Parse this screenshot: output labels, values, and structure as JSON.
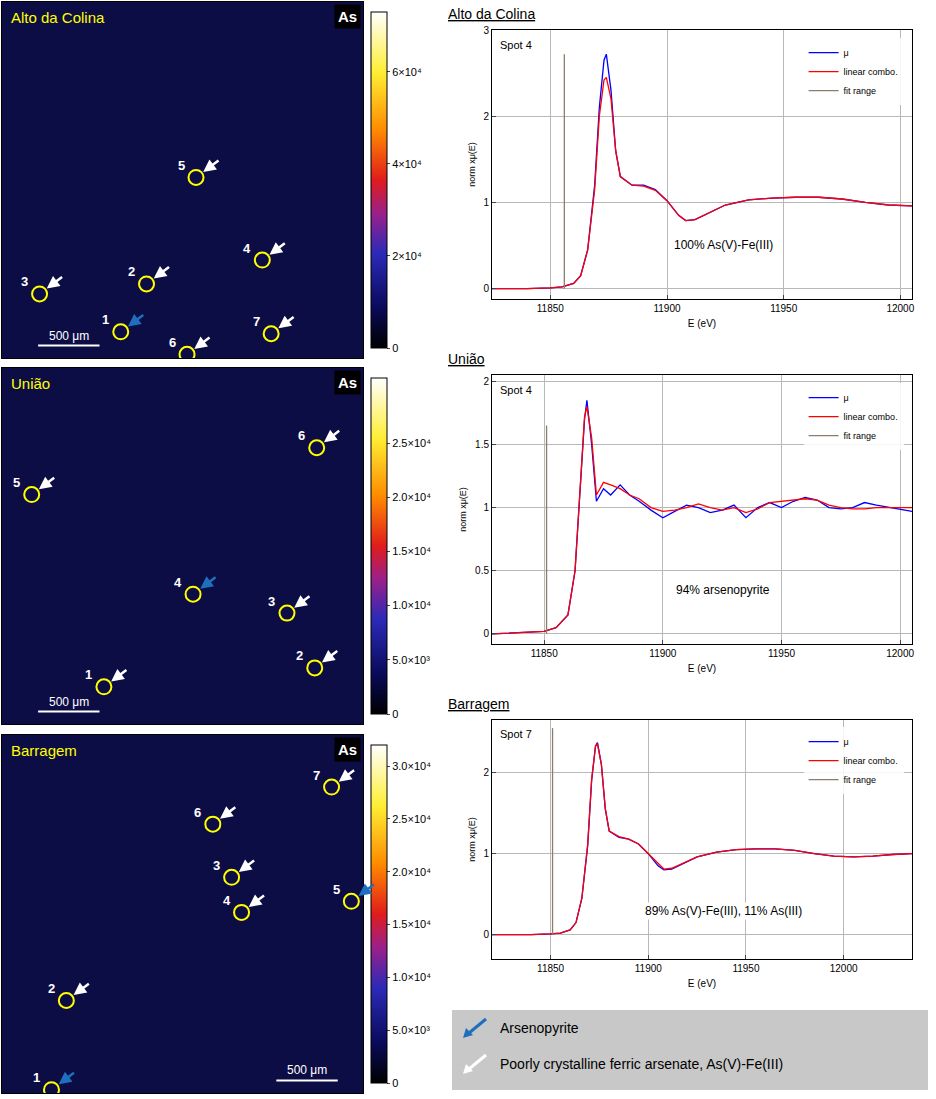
{
  "chart_data": [
    {
      "type": "map",
      "title": "Alto da Colina",
      "element": "As",
      "xlim": [
        0,
        2940
      ],
      "ylim": [
        2880,
        0
      ],
      "tick_labels": false,
      "scale_bar": {
        "length": 500,
        "label": "500 μm"
      },
      "colorbar": {
        "range": [
          0,
          73000
        ],
        "ticks": [
          0,
          {
            "value": 20000,
            "label": "2×10⁴"
          },
          {
            "value": 40000,
            "label": "4×10⁴"
          },
          {
            "value": 60000,
            "label": "6×10⁴"
          }
        ]
      },
      "spots": [
        {
          "id": 1,
          "x": 967,
          "y": 2668,
          "phase": "Arsenopyrite"
        },
        {
          "id": 2,
          "x": 1177,
          "y": 2281,
          "phase": "Poorly crystalline ferric arsenate, As(V)-Fe(III)"
        },
        {
          "id": 3,
          "x": 306,
          "y": 2362,
          "phase": "Poorly crystalline ferric arsenate, As(V)-Fe(III)"
        },
        {
          "id": 4,
          "x": 2120,
          "y": 2088,
          "phase": "Poorly crystalline ferric arsenate, As(V)-Fe(III)"
        },
        {
          "id": 5,
          "x": 1580,
          "y": 1419,
          "phase": "Poorly crystalline ferric arsenate, As(V)-Fe(III)"
        },
        {
          "id": 6,
          "x": 1507,
          "y": 2850,
          "phase": "Poorly crystalline ferric arsenate, As(V)-Fe(III)"
        },
        {
          "id": 7,
          "x": 2192,
          "y": 2684,
          "phase": "Poorly crystalline ferric arsenate, As(V)-Fe(III)"
        }
      ]
    },
    {
      "type": "map",
      "title": "União",
      "element": "As",
      "xlim": [
        0,
        2940
      ],
      "ylim": [
        2880,
        0
      ],
      "tick_labels": false,
      "scale_bar": {
        "length": 500,
        "label": "500 μm"
      },
      "colorbar": {
        "range": [
          0,
          31000
        ],
        "ticks": [
          0,
          {
            "value": 5000,
            "label": "5.0×10³"
          },
          {
            "value": 10000,
            "label": "1.0×10⁴"
          },
          {
            "value": 15000,
            "label": "1.5×10⁴"
          },
          {
            "value": 20000,
            "label": "2.0×10⁴"
          },
          {
            "value": 25000,
            "label": "2.5×10⁴"
          }
        ]
      },
      "spots": [
        {
          "id": 1,
          "x": 830,
          "y": 2579,
          "phase": "Poorly crystalline ferric arsenate, As(V)-Fe(III)"
        },
        {
          "id": 2,
          "x": 2547,
          "y": 2426,
          "phase": "Poorly crystalline ferric arsenate, As(V)-Fe(III)"
        },
        {
          "id": 3,
          "x": 2321,
          "y": 1983,
          "phase": "Poorly crystalline ferric arsenate, As(V)-Fe(III)"
        },
        {
          "id": 4,
          "x": 1556,
          "y": 1830,
          "phase": "Arsenopyrite"
        },
        {
          "id": 5,
          "x": 242,
          "y": 1024,
          "phase": "Poorly crystalline ferric arsenate, As(V)-Fe(III)"
        },
        {
          "id": 6,
          "x": 2563,
          "y": 645,
          "phase": "Poorly crystalline ferric arsenate, As(V)-Fe(III)"
        }
      ]
    },
    {
      "type": "map",
      "title": "Barragem",
      "element": "As",
      "xlim": [
        0,
        2940
      ],
      "ylim": [
        2880,
        0
      ],
      "tick_labels": false,
      "scale_bar": {
        "length": 500,
        "label": "500 μm"
      },
      "colorbar": {
        "range": [
          0,
          32000
        ],
        "ticks": [
          0,
          {
            "value": 5000,
            "label": "5.0×10³"
          },
          {
            "value": 10000,
            "label": "1.0×10⁴"
          },
          {
            "value": 15000,
            "label": "1.5×10⁴"
          },
          {
            "value": 20000,
            "label": "2.0×10⁴"
          },
          {
            "value": 25000,
            "label": "2.5×10⁴"
          },
          {
            "value": 30000,
            "label": "3.0×10⁴"
          }
        ]
      },
      "spots": [
        {
          "id": 1,
          "x": 403,
          "y": 2853,
          "phase": "Arsenopyrite"
        },
        {
          "id": 2,
          "x": 524,
          "y": 2136,
          "phase": "Poorly crystalline ferric arsenate, As(V)-Fe(III)"
        },
        {
          "id": 3,
          "x": 1870,
          "y": 1145,
          "phase": "Poorly crystalline ferric arsenate, As(V)-Fe(III)"
        },
        {
          "id": 4,
          "x": 1951,
          "y": 1427,
          "phase": "Poorly crystalline ferric arsenate, As(V)-Fe(III)"
        },
        {
          "id": 5,
          "x": 2845,
          "y": 1338,
          "phase": "Arsenopyrite"
        },
        {
          "id": 6,
          "x": 1717,
          "y": 717,
          "phase": "Poorly crystalline ferric arsenate, As(V)-Fe(III)"
        },
        {
          "id": 7,
          "x": 2684,
          "y": 419,
          "phase": "Poorly crystalline ferric arsenate, As(V)-Fe(III)"
        }
      ]
    },
    {
      "type": "line",
      "title": "Alto da Colina",
      "spot": "Spot 4",
      "annotation": "100% As(V)-Fe(III)",
      "xlabel": "E (eV)",
      "ylabel": "norm xμ(E)",
      "xlim": [
        11825,
        12005
      ],
      "xticks": [
        11850,
        11900,
        11950,
        12000
      ],
      "ylim": [
        -0.12,
        3.0
      ],
      "yticks": [
        0,
        1,
        2,
        3
      ],
      "grid": true,
      "legend": "top right",
      "series": [
        {
          "name": "μ",
          "color": "#0000ff",
          "x": [
            11825,
            11840,
            11850,
            11855,
            11860,
            11863,
            11866,
            11869,
            11871,
            11873,
            11874,
            11876,
            11878,
            11880,
            11885,
            11890,
            11895,
            11900,
            11905,
            11908,
            11912,
            11918,
            11925,
            11935,
            11945,
            11955,
            11965,
            11975,
            11985,
            11995,
            12005
          ],
          "values": [
            0,
            0,
            0.01,
            0.02,
            0.06,
            0.15,
            0.45,
            1.2,
            2.1,
            2.65,
            2.72,
            2.3,
            1.6,
            1.3,
            1.2,
            1.2,
            1.15,
            1.02,
            0.85,
            0.79,
            0.8,
            0.88,
            0.97,
            1.03,
            1.05,
            1.06,
            1.06,
            1.04,
            1.0,
            0.97,
            0.96
          ]
        },
        {
          "name": "linear combo.",
          "color": "#ff0000",
          "x": [
            11825,
            11840,
            11850,
            11855,
            11860,
            11863,
            11866,
            11869,
            11871,
            11873,
            11874,
            11876,
            11878,
            11880,
            11885,
            11890,
            11895,
            11900,
            11905,
            11908,
            11912,
            11918,
            11925,
            11935,
            11945,
            11955,
            11965,
            11975,
            11985,
            11995,
            12005
          ],
          "values": [
            0,
            0,
            0.01,
            0.02,
            0.06,
            0.15,
            0.45,
            1.15,
            2.0,
            2.42,
            2.45,
            2.2,
            1.6,
            1.3,
            1.2,
            1.19,
            1.14,
            1.02,
            0.85,
            0.79,
            0.8,
            0.88,
            0.97,
            1.03,
            1.05,
            1.06,
            1.06,
            1.04,
            1.0,
            0.97,
            0.96
          ]
        },
        {
          "name": "fit range",
          "color": "#8b7d6b",
          "x": [
            11856,
            11856
          ],
          "values": [
            0,
            2.72
          ]
        }
      ]
    },
    {
      "type": "line",
      "title": "União",
      "spot": "Spot 4",
      "annotation": "94% arsenopyrite",
      "xlabel": "E (eV)",
      "ylabel": "norm xμ(E)",
      "xlim": [
        11828,
        12005
      ],
      "xticks": [
        11850,
        11900,
        11950,
        12000
      ],
      "ylim": [
        -0.08,
        2.05
      ],
      "yticks": [
        0,
        0.5,
        1,
        1.5,
        2
      ],
      "grid": true,
      "legend": "top right",
      "series": [
        {
          "name": "μ",
          "color": "#0000ff",
          "x": [
            11828,
            11840,
            11850,
            11855,
            11860,
            11863,
            11865,
            11867,
            11868,
            11870,
            11872,
            11875,
            11878,
            11882,
            11886,
            11890,
            11895,
            11900,
            11905,
            11910,
            11915,
            11920,
            11925,
            11930,
            11935,
            11940,
            11945,
            11950,
            11955,
            11960,
            11965,
            11970,
            11975,
            11980,
            11985,
            11990,
            12005
          ],
          "values": [
            0,
            0.01,
            0.02,
            0.05,
            0.15,
            0.5,
            1.1,
            1.7,
            1.85,
            1.5,
            1.05,
            1.15,
            1.1,
            1.18,
            1.1,
            1.05,
            0.98,
            0.92,
            0.97,
            1.02,
            1.0,
            0.96,
            0.98,
            1.02,
            0.92,
            1.0,
            1.04,
            1.0,
            1.05,
            1.08,
            1.06,
            1.0,
            0.99,
            1.0,
            1.04,
            1.02,
            0.97
          ]
        },
        {
          "name": "linear combo.",
          "color": "#ff0000",
          "x": [
            11828,
            11840,
            11850,
            11855,
            11860,
            11863,
            11865,
            11867,
            11868,
            11870,
            11872,
            11875,
            11878,
            11882,
            11886,
            11890,
            11895,
            11900,
            11905,
            11910,
            11915,
            11920,
            11925,
            11930,
            11935,
            11940,
            11945,
            11950,
            11955,
            11960,
            11965,
            11970,
            11975,
            11980,
            11985,
            11990,
            12005
          ],
          "values": [
            0,
            0.01,
            0.02,
            0.05,
            0.15,
            0.5,
            1.15,
            1.72,
            1.8,
            1.55,
            1.1,
            1.2,
            1.18,
            1.15,
            1.1,
            1.07,
            1.0,
            0.97,
            0.98,
            1.0,
            1.03,
            1.0,
            0.98,
            1.0,
            0.96,
            0.99,
            1.04,
            1.05,
            1.06,
            1.07,
            1.06,
            1.02,
            1.0,
            0.99,
            0.99,
            1.0,
            1.0
          ]
        },
        {
          "name": "fit range",
          "color": "#8b7d6b",
          "x": [
            11851,
            11851
          ],
          "values": [
            0,
            1.65
          ]
        }
      ]
    },
    {
      "type": "line",
      "title": "Barragem",
      "spot": "Spot 7",
      "annotation": "89% As(V)-Fe(III), 11% As(III)",
      "xlabel": "E (eV)",
      "ylabel": "norm xμ(E)",
      "xlim": [
        11820,
        12035
      ],
      "xticks": [
        11850,
        11900,
        11950,
        12000
      ],
      "ylim": [
        -0.3,
        2.65
      ],
      "yticks": [
        0,
        1,
        2
      ],
      "grid": true,
      "legend": "top right",
      "series": [
        {
          "name": "μ",
          "color": "#0000ff",
          "x": [
            11820,
            11840,
            11850,
            11855,
            11860,
            11863,
            11866,
            11869,
            11871,
            11873,
            11874,
            11876,
            11878,
            11880,
            11885,
            11890,
            11895,
            11900,
            11905,
            11908,
            11912,
            11918,
            11925,
            11935,
            11945,
            11955,
            11965,
            11975,
            11985,
            11995,
            12005,
            12015,
            12025,
            12035
          ],
          "values": [
            0,
            0,
            0.01,
            0.02,
            0.06,
            0.15,
            0.45,
            1.1,
            1.9,
            2.33,
            2.37,
            2.1,
            1.55,
            1.28,
            1.2,
            1.18,
            1.12,
            1.0,
            0.85,
            0.8,
            0.81,
            0.88,
            0.96,
            1.02,
            1.05,
            1.06,
            1.06,
            1.04,
            1.0,
            0.97,
            0.96,
            0.97,
            0.99,
            1.0
          ]
        },
        {
          "name": "linear combo.",
          "color": "#ff0000",
          "x": [
            11820,
            11840,
            11850,
            11855,
            11860,
            11863,
            11866,
            11869,
            11871,
            11873,
            11874,
            11876,
            11878,
            11880,
            11885,
            11890,
            11895,
            11900,
            11905,
            11908,
            11912,
            11918,
            11925,
            11935,
            11945,
            11955,
            11965,
            11975,
            11985,
            11995,
            12005,
            12015,
            12025,
            12035
          ],
          "values": [
            0,
            0,
            0.01,
            0.02,
            0.06,
            0.15,
            0.45,
            1.12,
            1.92,
            2.33,
            2.35,
            2.1,
            1.56,
            1.28,
            1.21,
            1.18,
            1.12,
            1.0,
            0.87,
            0.81,
            0.82,
            0.88,
            0.96,
            1.02,
            1.05,
            1.06,
            1.06,
            1.04,
            1.0,
            0.97,
            0.96,
            0.97,
            0.99,
            1.0
          ]
        },
        {
          "name": "fit range",
          "color": "#8b7d6b",
          "x": [
            11851,
            11851
          ],
          "values": [
            0,
            2.55
          ]
        }
      ]
    }
  ],
  "phase_key": [
    {
      "label": "Arsenopyrite",
      "color": "#1f6fbf"
    },
    {
      "label": "Poorly crystalline ferric arsenate, As(V)-Fe(III)",
      "color": "#ffffff"
    }
  ]
}
